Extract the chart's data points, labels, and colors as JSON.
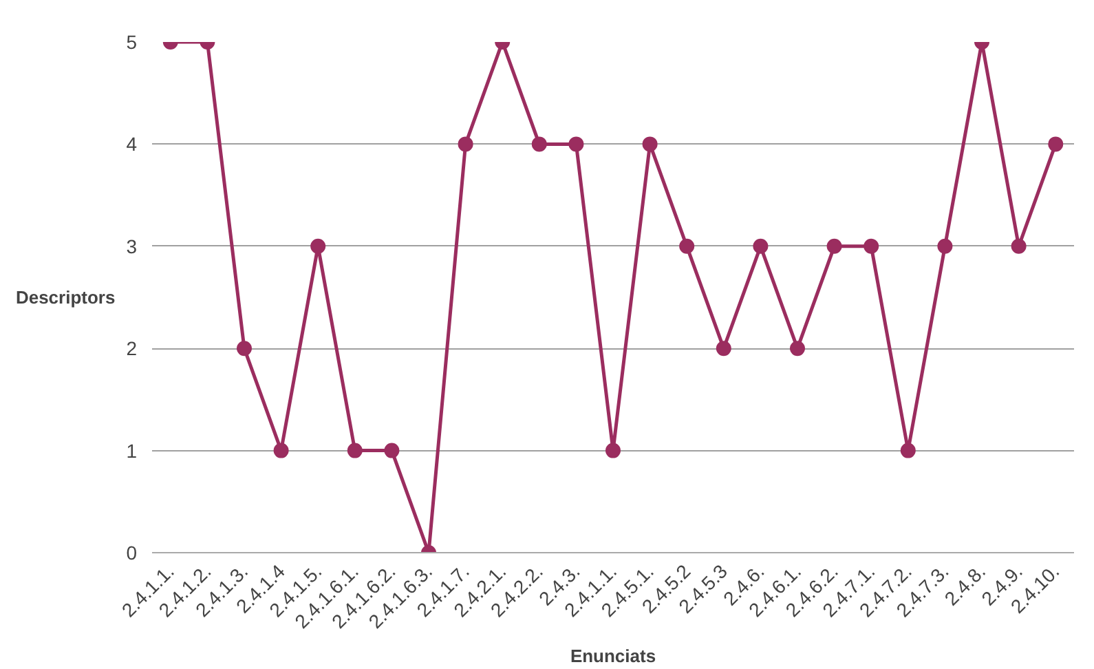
{
  "chart_data": {
    "type": "line",
    "xlabel": "Enunciats",
    "ylabel": "Descriptors",
    "categories": [
      "2.4.1.1.",
      "2.4.1.2.",
      "2.4.1.3.",
      "2.4.1.4",
      "2.4.1.5.",
      "2.4.1.6.1.",
      "2.4.1.6.2.",
      "2.4.1.6.3.",
      "2.4.1.7.",
      "2.4.2.1.",
      "2.4.2.2.",
      "2.4.3.",
      "2.4.1.1.",
      "2.4.5.1.",
      "2.4.5.2",
      "2.4.5.3",
      "2.4.6.",
      "2.4.6.1.",
      "2.4.6.2.",
      "2.4.7.1.",
      "2.4.7.2.",
      "2.4.7.3.",
      "2.4.8.",
      "2.4.9.",
      "2.4.10."
    ],
    "series": [
      {
        "color": "#9b2d5f",
        "values": [
          5,
          5,
          2,
          1,
          3,
          1,
          1,
          0,
          4,
          5,
          4,
          4,
          1,
          4,
          3,
          2,
          3,
          2,
          3,
          3,
          1,
          3,
          5,
          3,
          4
        ]
      }
    ],
    "ylim": [
      0,
      5
    ],
    "yticks": [
      0,
      1,
      2,
      3,
      4,
      5
    ],
    "grid": "y",
    "marker": "circle",
    "line_style": "solid"
  }
}
